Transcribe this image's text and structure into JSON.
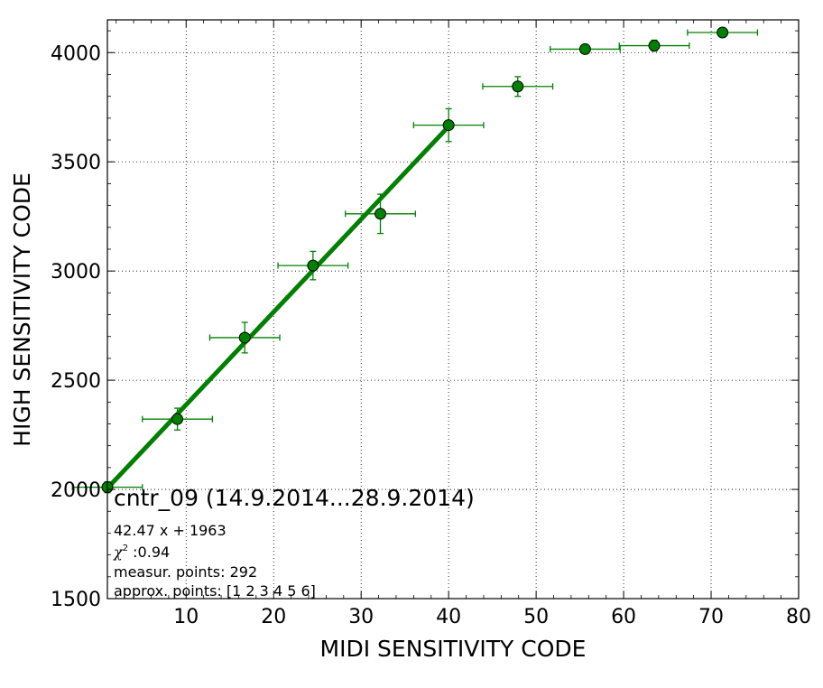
{
  "chart_data": {
    "type": "scatter",
    "xlabel": "MIDI SENSITIVITY CODE",
    "ylabel": "HIGH SENSITIVITY CODE",
    "xlim": [
      1,
      80
    ],
    "ylim": [
      1500,
      4150
    ],
    "xticks": [
      10,
      20,
      30,
      40,
      50,
      60,
      70,
      80
    ],
    "yticks": [
      1500,
      2000,
      2500,
      3000,
      3500,
      4000
    ],
    "grid": true,
    "series": [
      {
        "color": "#008000",
        "marker": "circle",
        "points": [
          {
            "x": 1,
            "y": 2010,
            "xerr": 4,
            "yerr": 25
          },
          {
            "x": 9,
            "y": 2322,
            "xerr": 4,
            "yerr": 50
          },
          {
            "x": 16.7,
            "y": 2695,
            "xerr": 4,
            "yerr": 70
          },
          {
            "x": 24.5,
            "y": 3025,
            "xerr": 4,
            "yerr": 65
          },
          {
            "x": 32.2,
            "y": 3262,
            "xerr": 4,
            "yerr": 90
          },
          {
            "x": 40,
            "y": 3668,
            "xerr": 4,
            "yerr": 75
          },
          {
            "x": 47.9,
            "y": 3845,
            "xerr": 4,
            "yerr": 45
          },
          {
            "x": 55.6,
            "y": 4016,
            "xerr": 4,
            "yerr": 15
          },
          {
            "x": 63.5,
            "y": 4032,
            "xerr": 4,
            "yerr": 25
          },
          {
            "x": 71.3,
            "y": 4092,
            "xerr": 4,
            "yerr": 10
          }
        ]
      }
    ],
    "fit_line": {
      "slope": 42.47,
      "intercept": 1963,
      "x_range": [
        1,
        40
      ],
      "color": "#008000"
    },
    "annotations": {
      "title": "cntr_09 (14.9.2014...28.9.2014)",
      "equation": "42.47 x + 1963",
      "chi2_symbol": "χ",
      "chi2_sup": "2",
      "chi2_value": " :0.94",
      "measur_points": "measur. points: 292",
      "approx_points": "approx. points: [1 2 3 4 5 6]"
    }
  }
}
